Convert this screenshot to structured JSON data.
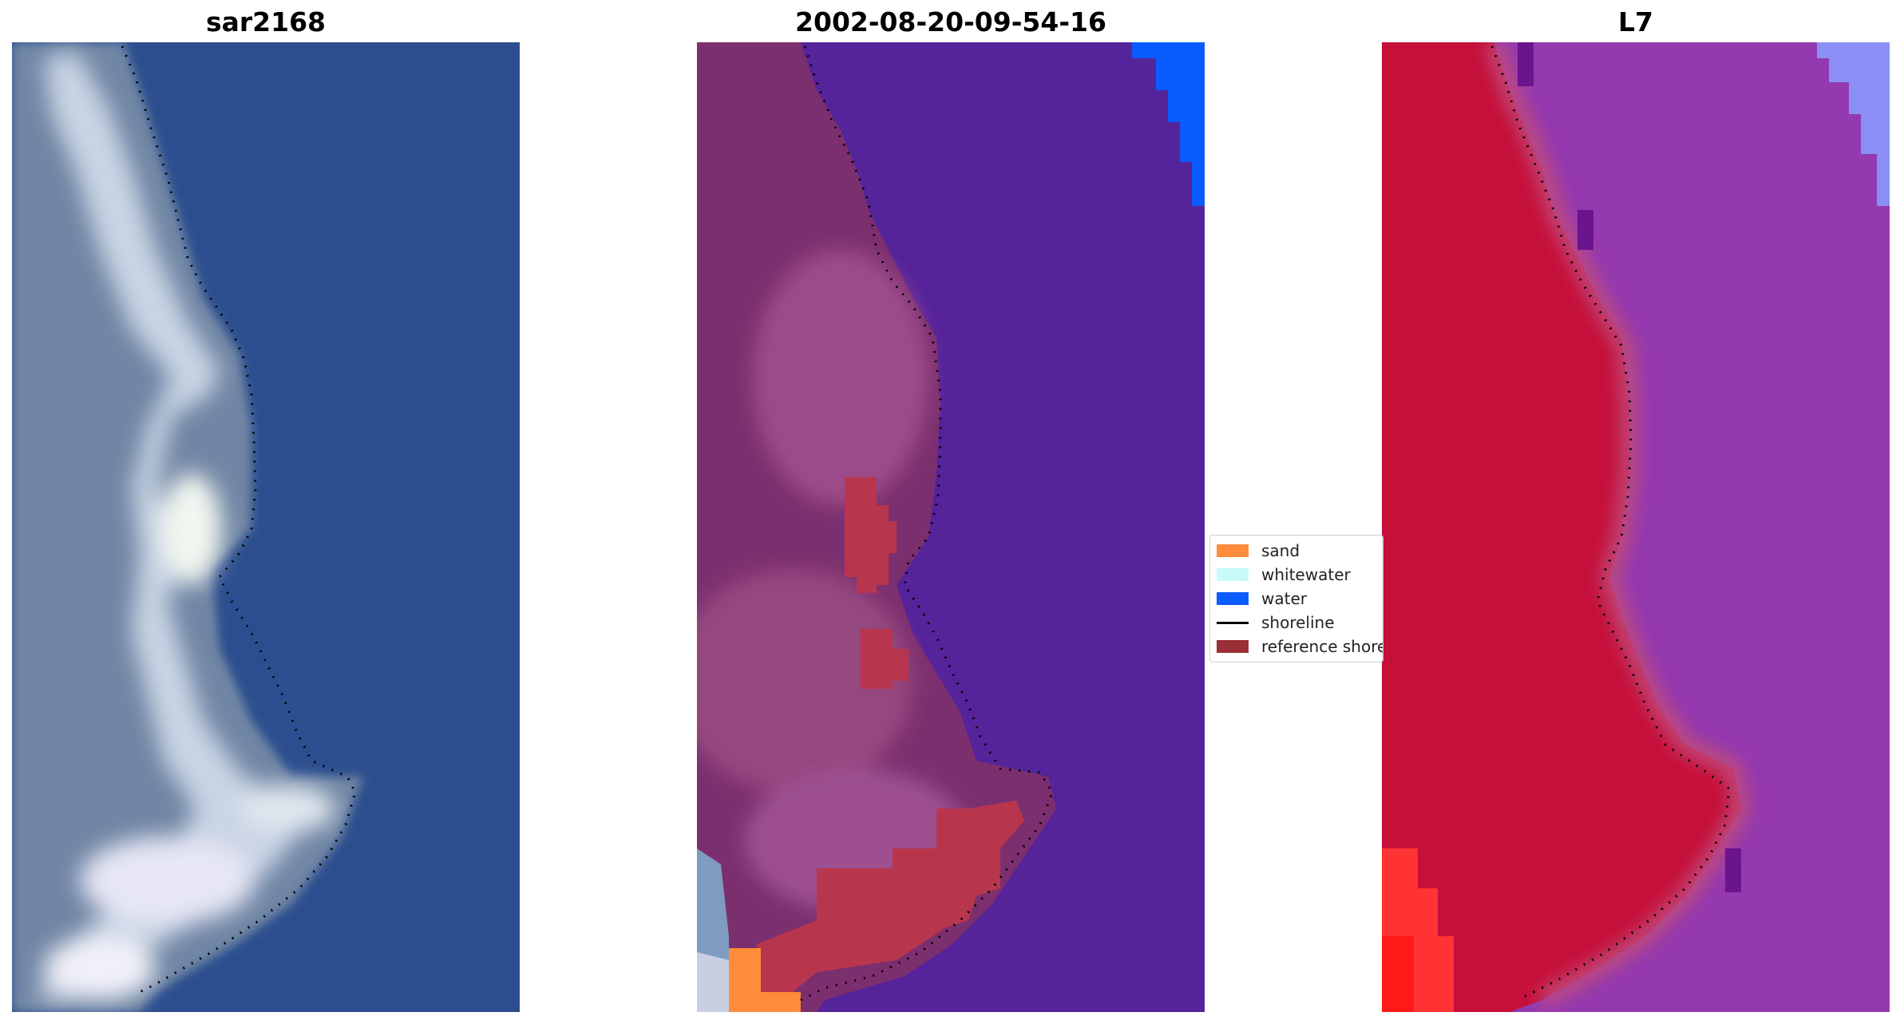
{
  "panels": [
    {
      "title": "sar2168"
    },
    {
      "title": "2002-08-20-09-54-16"
    },
    {
      "title": "L7"
    }
  ],
  "legend": {
    "items": [
      {
        "label": "sand",
        "color": "#ff8c3a",
        "kind": "patch"
      },
      {
        "label": "whitewater",
        "color": "#c8fbf8",
        "kind": "patch"
      },
      {
        "label": "water",
        "color": "#0a5cff",
        "kind": "patch"
      },
      {
        "label": "shoreline",
        "color": "#000000",
        "kind": "line"
      },
      {
        "label": "reference shoreline",
        "color": "#9a2f35",
        "kind": "patch"
      }
    ]
  },
  "colors": {
    "rgb_water": "#2c4e8e",
    "rgb_beach": "#a9b9d6",
    "classified_water": "#55239a",
    "classified_land": "#8a3a78",
    "sand": "#ff8c3a",
    "ndwi_land": "#c5103a",
    "ndwi_water": "#9439ae"
  }
}
